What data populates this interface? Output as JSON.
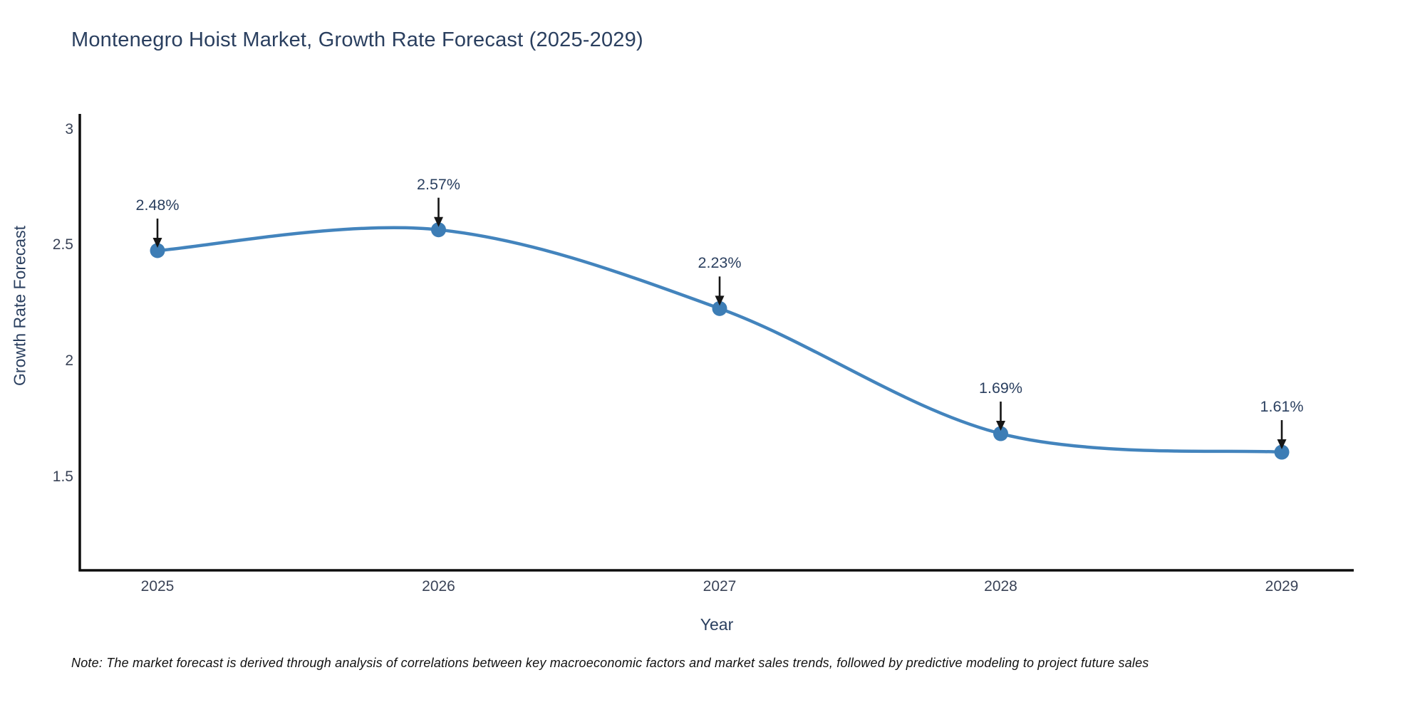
{
  "title": "Montenegro Hoist Market, Growth Rate Forecast (2025-2029)",
  "note": "Note: The market forecast is derived through analysis of correlations between key macroeconomic factors and market sales trends, followed by predictive modeling to project future sales",
  "chart_data": {
    "type": "line",
    "title": "Montenegro Hoist Market, Growth Rate Forecast (2025-2029)",
    "xlabel": "Year",
    "ylabel": "Growth Rate Forecast",
    "categories": [
      "2025",
      "2026",
      "2027",
      "2028",
      "2029"
    ],
    "series": [
      {
        "name": "Growth Rate Forecast",
        "values": [
          2.48,
          2.57,
          2.23,
          1.69,
          1.61
        ]
      }
    ],
    "point_labels": [
      "2.48%",
      "2.57%",
      "2.23%",
      "1.69%",
      "1.61%"
    ],
    "yticks": [
      1.5,
      2,
      2.5,
      3
    ],
    "ylim": [
      1.1,
      3.07
    ],
    "line_shape": "spline",
    "grid": false,
    "legend": "none",
    "colors": {
      "line": "#4384bd",
      "marker": "#3d7db5",
      "axis_line": "#0d0d0d",
      "arrow": "#161616",
      "title_text": "#2a3f5f",
      "tick_text": "#3a4357"
    }
  }
}
